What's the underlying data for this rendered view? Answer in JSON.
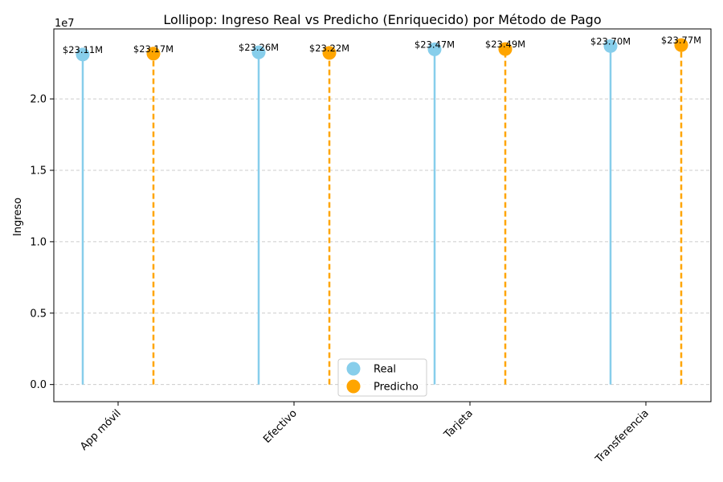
{
  "chart_data": {
    "type": "lollipop",
    "title": "Lollipop: Ingreso Real vs Predicho (Enriquecido) por Método de Pago",
    "xlabel": "",
    "ylabel": "Ingreso",
    "y_offset_label": "1e7",
    "categories": [
      "App móvil",
      "Efectivo",
      "Tarjeta",
      "Transferencia"
    ],
    "series": [
      {
        "name": "Real",
        "values": [
          23110000,
          23260000,
          23470000,
          23700000
        ],
        "labels": [
          "$23.11M",
          "$23.26M",
          "$23.47M",
          "$23.70M"
        ],
        "color": "#87CEEB",
        "line_style": "solid"
      },
      {
        "name": "Predicho",
        "values": [
          23170000,
          23220000,
          23490000,
          23770000
        ],
        "labels": [
          "$23.17M",
          "$23.22M",
          "$23.49M",
          "$23.77M"
        ],
        "color": "#FFA500",
        "line_style": "dashed"
      }
    ],
    "y_ticks": [
      0,
      5000000,
      10000000,
      15000000,
      20000000
    ],
    "y_tick_labels": [
      "0.0",
      "0.5",
      "1.0",
      "1.5",
      "2.0"
    ],
    "ylim": [
      -1200000,
      24900000
    ],
    "grid": "y-dashed",
    "legend": "bottom-center",
    "x_tick_rotation": 45
  }
}
